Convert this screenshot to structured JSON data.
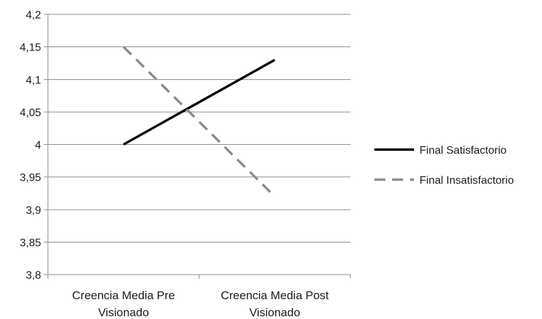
{
  "chart_data": {
    "type": "line",
    "categories": [
      [
        "Creencia Media Pre",
        "Visionado"
      ],
      [
        "Creencia Media Post",
        "Visionado"
      ]
    ],
    "series": [
      {
        "name": "Final Satisfactorio",
        "values": [
          4.0,
          4.13
        ],
        "color": "#000000",
        "dash": "solid"
      },
      {
        "name": "Final Insatisfactorio",
        "values": [
          4.15,
          3.92
        ],
        "color": "#8c8c8c",
        "dash": "dashed"
      }
    ],
    "ylim": [
      3.8,
      4.2
    ],
    "yticks": [
      "3,8",
      "3,85",
      "3,9",
      "3,95",
      "4",
      "4,05",
      "4,1",
      "4,15",
      "4,2"
    ],
    "grid": true,
    "legend": "right"
  }
}
